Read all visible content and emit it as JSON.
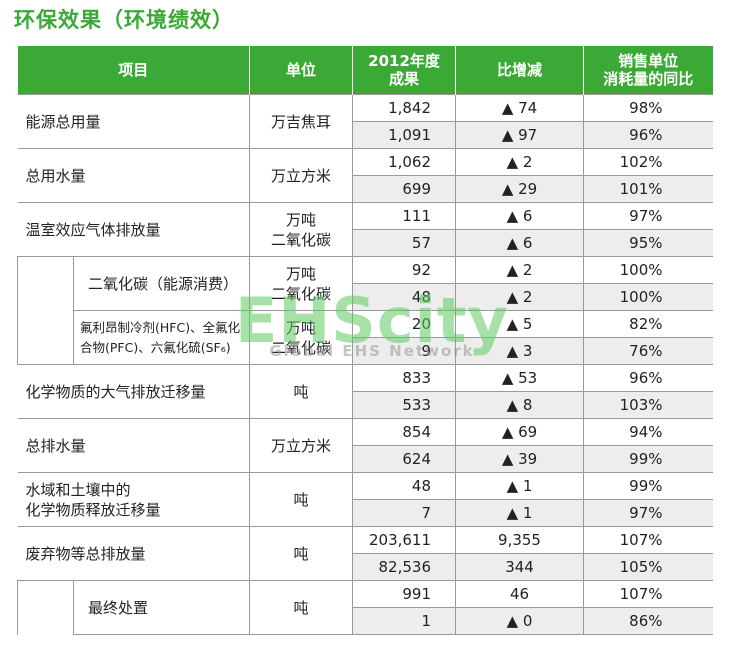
{
  "title": "环保效果（环境绩效）",
  "header": {
    "item": "项目",
    "unit": "单位",
    "result": "2012年度\n成果",
    "change": "比增减",
    "ratio": "销售单位\n消耗量的同比"
  },
  "rows": [
    {
      "item": "能源总用量",
      "unit": "万吉焦耳",
      "vals": [
        [
          "1,842",
          "▲ 74",
          "98%"
        ],
        [
          "1,091",
          "▲ 97",
          "96%"
        ]
      ]
    },
    {
      "item": "总用水量",
      "unit": "万立方米",
      "vals": [
        [
          "1,062",
          "▲ 2",
          "102%"
        ],
        [
          "699",
          "▲ 29",
          "101%"
        ]
      ]
    },
    {
      "item": "温室效应气体排放量",
      "unit": "万吨\n二氧化碳",
      "vals": [
        [
          "111",
          "▲ 6",
          "97%"
        ],
        [
          "57",
          "▲ 6",
          "95%"
        ]
      ]
    },
    {
      "item": "二氧化碳（能源消费）",
      "unit": "万吨\n二氧化碳",
      "vals": [
        [
          "92",
          "▲ 2",
          "100%"
        ],
        [
          "48",
          "▲ 2",
          "100%"
        ]
      ]
    },
    {
      "item": "氟利昂制冷剂(HFC)、全氟化\n合物(PFC)、六氟化硫(SF₆)",
      "unit": "万吨\n二氧化碳",
      "vals": [
        [
          "20",
          "▲ 5",
          "82%"
        ],
        [
          "9",
          "▲ 3",
          "76%"
        ]
      ]
    },
    {
      "item": "化学物质的大气排放迁移量",
      "unit": "吨",
      "vals": [
        [
          "833",
          "▲ 53",
          "96%"
        ],
        [
          "533",
          "▲ 8",
          "103%"
        ]
      ]
    },
    {
      "item": "总排水量",
      "unit": "万立方米",
      "vals": [
        [
          "854",
          "▲ 69",
          "94%"
        ],
        [
          "624",
          "▲ 39",
          "99%"
        ]
      ]
    },
    {
      "item": "水域和土壤中的\n化学物质释放迁移量",
      "unit": "吨",
      "vals": [
        [
          "48",
          "▲ 1",
          "99%"
        ],
        [
          "7",
          "▲ 1",
          "97%"
        ]
      ]
    },
    {
      "item": "废弃物等总排放量",
      "unit": "吨",
      "vals": [
        [
          "203,611",
          "9,355",
          "107%"
        ],
        [
          "82,536",
          "344",
          "105%"
        ]
      ]
    },
    {
      "item": "最终处置",
      "unit": "吨",
      "vals": [
        [
          "991",
          "46",
          "107%"
        ],
        [
          "1",
          "▲ 0",
          "86%"
        ]
      ]
    }
  ],
  "watermark": {
    "main": "EHScity",
    "sub": "Global EHS Network"
  },
  "colors": {
    "accent": "#3aa935",
    "shade": "#ededed"
  }
}
